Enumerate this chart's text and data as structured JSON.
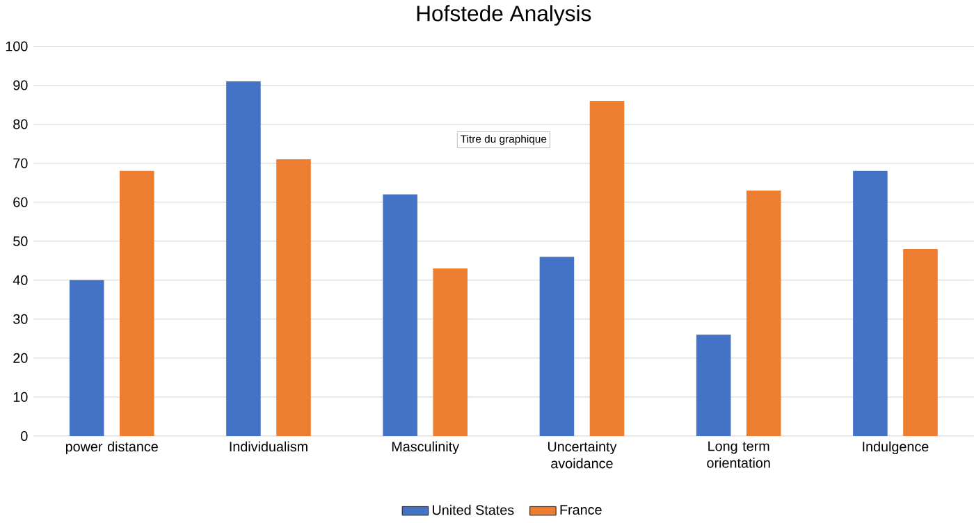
{
  "chart_data": {
    "type": "bar",
    "title": "Hofstede Analysis",
    "categories": [
      "power distance",
      "Individualism",
      "Masculinity",
      "Uncertainty avoidance",
      "Long term orientation",
      "Indulgence"
    ],
    "series": [
      {
        "name": "United States",
        "color": "#4472c4",
        "values": [
          40,
          91,
          62,
          46,
          26,
          68
        ]
      },
      {
        "name": "France",
        "color": "#ed7d31",
        "values": [
          68,
          71,
          43,
          86,
          63,
          48
        ]
      }
    ],
    "ylim": [
      0,
      100
    ],
    "yticks": [
      0,
      10,
      20,
      30,
      40,
      50,
      60,
      70,
      80,
      90,
      100
    ],
    "grid": "y",
    "legend": "bottom",
    "annotations": [
      "Titre du graphique"
    ]
  }
}
